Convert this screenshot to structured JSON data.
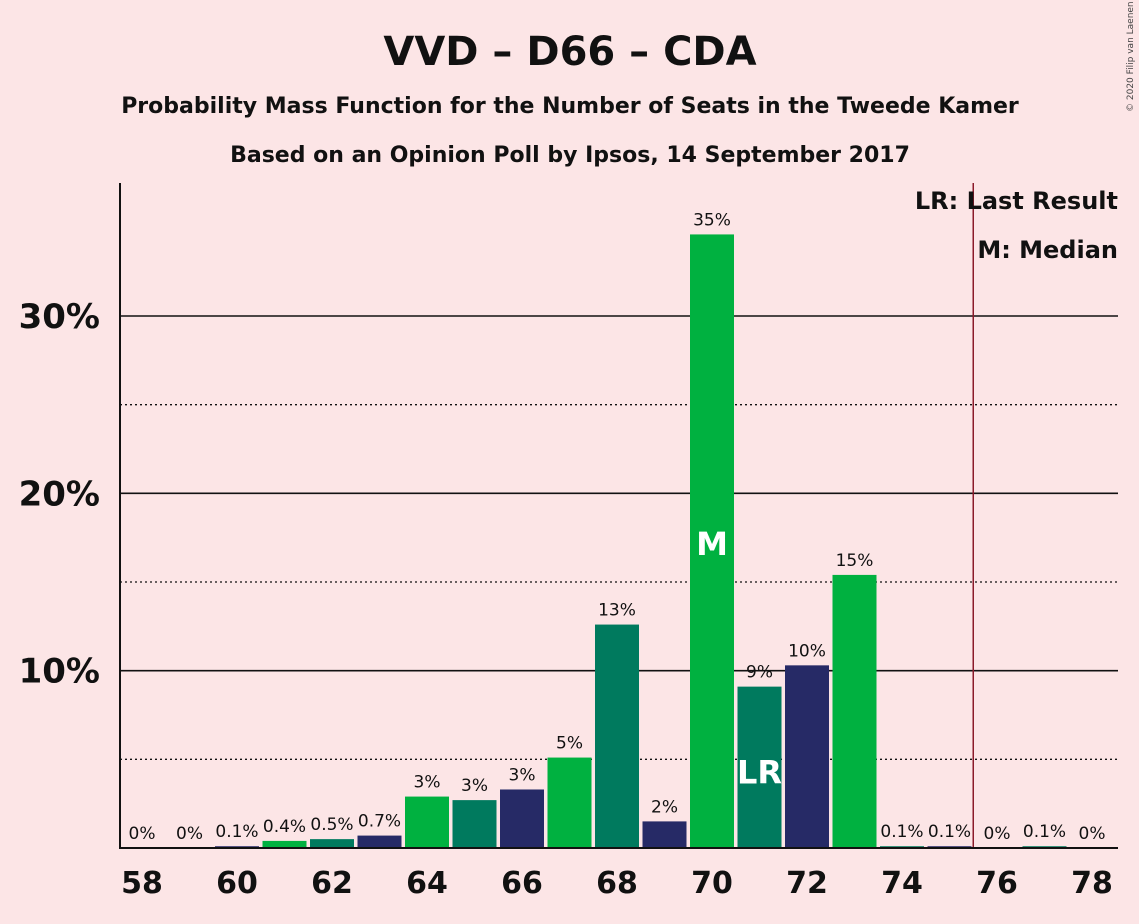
{
  "chart_data": {
    "type": "bar",
    "title": "VVD – D66 – CDA",
    "subtitle": "Probability Mass Function for the Number of Seats in the Tweede Kamer",
    "subtitle2": "Based on an Opinion Poll by Ipsos, 14 September 2017",
    "credit": "© 2020 Filip van Laenen",
    "legend": [
      "LR: Last Result",
      "M: Median"
    ],
    "legend_position": "top-right",
    "x": [
      58,
      59,
      60,
      61,
      62,
      63,
      64,
      65,
      66,
      67,
      68,
      69,
      70,
      71,
      72,
      73,
      74,
      75,
      76,
      77,
      78
    ],
    "values": [
      0,
      0,
      0.1,
      0.4,
      0.5,
      0.7,
      2.9,
      2.7,
      3.3,
      5.1,
      12.6,
      1.5,
      34.6,
      9.1,
      10.3,
      15.4,
      0.1,
      0.1,
      0,
      0.1,
      0
    ],
    "labels": [
      "0%",
      "0%",
      "0.1%",
      "0.4%",
      "0.5%",
      "0.7%",
      "3%",
      "3%",
      "3%",
      "5%",
      "13%",
      "2%",
      "35%",
      "9%",
      "10%",
      "15%",
      "0.1%",
      "0.1%",
      "0%",
      "0.1%",
      "0%"
    ],
    "bar_colors": [
      "#00B140",
      "#007A5E",
      "#262A66",
      "#00B140",
      "#007A5E",
      "#262A66",
      "#00B140",
      "#007A5E",
      "#262A66",
      "#00B140",
      "#007A5E",
      "#262A66",
      "#00B140",
      "#007A5E",
      "#262A66",
      "#00B140",
      "#007A5E",
      "#262A66",
      "#00B140",
      "#007A5E",
      "#262A66"
    ],
    "xticks": [
      "58",
      "60",
      "62",
      "64",
      "66",
      "68",
      "70",
      "72",
      "74",
      "76",
      "78"
    ],
    "yticks": [
      {
        "value": 10,
        "label": "10%"
      },
      {
        "value": 20,
        "label": "20%"
      },
      {
        "value": 30,
        "label": "30%"
      }
    ],
    "minor_gridlines": [
      5,
      15,
      25
    ],
    "ylim": [
      0,
      37.5
    ],
    "median": {
      "x": 70,
      "label": "M"
    },
    "last_result": {
      "x": 71,
      "label": "LR"
    },
    "majority_line_x": 75.5,
    "majority_line_color": "#8B1A2A"
  }
}
